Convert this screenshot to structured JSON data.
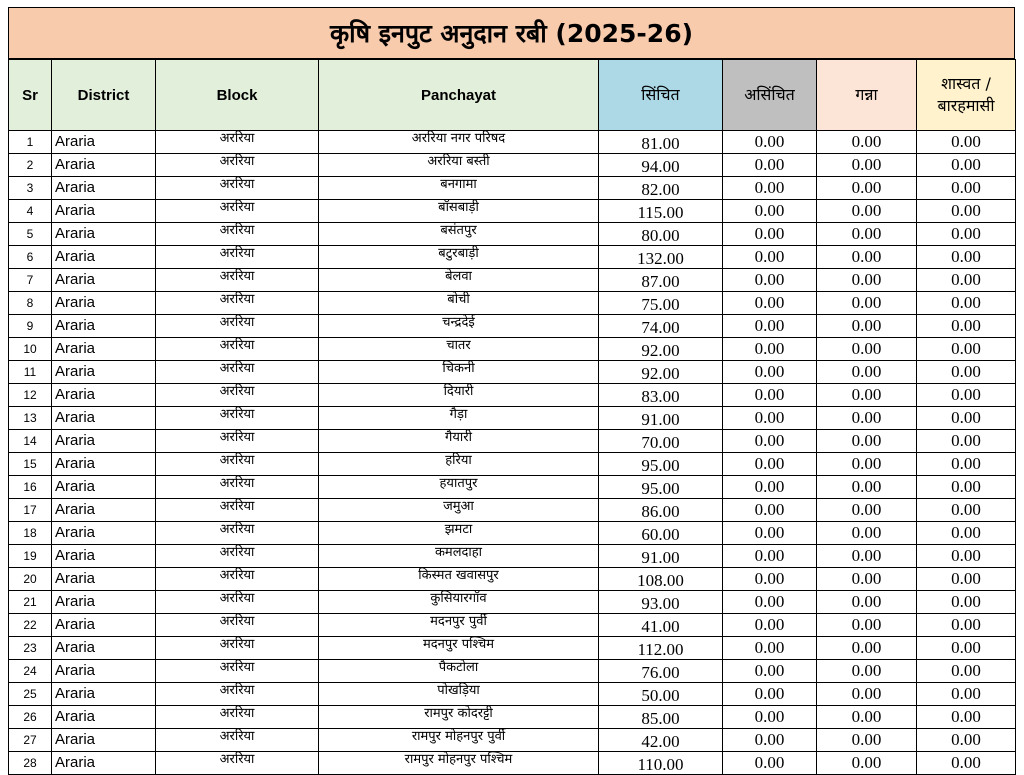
{
  "title": "कृषि इनपुट अनुदान रबी (2025-26)",
  "colors": {
    "title_bg": "#f8cbad",
    "sr_bg": "#e2efda",
    "district_bg": "#e2efda",
    "block_bg": "#e2efda",
    "panchayat_bg": "#e2efda",
    "sinchit_bg": "#add8e6",
    "asinchit_bg": "#bfbfbf",
    "ganna_bg": "#fce4d6",
    "shashwat_bg": "#fff2cc"
  },
  "headers": {
    "sr": "Sr",
    "district": "District",
    "block": "Block",
    "panchayat": "Panchayat",
    "sinchit": "सिंचित",
    "asinchit": "असिंचित",
    "ganna": "गन्ना",
    "shashwat_line1": "शास्वत /",
    "shashwat_line2": "बारहमासी"
  },
  "rows": [
    {
      "sr": "1",
      "district": "Araria",
      "block": "अररिया",
      "panchayat": "अररिया नगर परिषद",
      "sinchit": "81.00",
      "asinchit": "0.00",
      "ganna": "0.00",
      "shashwat": "0.00"
    },
    {
      "sr": "2",
      "district": "Araria",
      "block": "अररिया",
      "panchayat": "अररिया बस्ती",
      "sinchit": "94.00",
      "asinchit": "0.00",
      "ganna": "0.00",
      "shashwat": "0.00"
    },
    {
      "sr": "3",
      "district": "Araria",
      "block": "अररिया",
      "panchayat": "बनगामा",
      "sinchit": "82.00",
      "asinchit": "0.00",
      "ganna": "0.00",
      "shashwat": "0.00"
    },
    {
      "sr": "4",
      "district": "Araria",
      "block": "अररिया",
      "panchayat": "बॉसबाड़ी",
      "sinchit": "115.00",
      "asinchit": "0.00",
      "ganna": "0.00",
      "shashwat": "0.00"
    },
    {
      "sr": "5",
      "district": "Araria",
      "block": "अररिया",
      "panchayat": "बसंतपुर",
      "sinchit": "80.00",
      "asinchit": "0.00",
      "ganna": "0.00",
      "shashwat": "0.00"
    },
    {
      "sr": "6",
      "district": "Araria",
      "block": "अररिया",
      "panchayat": "बटुरबाड़ी",
      "sinchit": "132.00",
      "asinchit": "0.00",
      "ganna": "0.00",
      "shashwat": "0.00"
    },
    {
      "sr": "7",
      "district": "Araria",
      "block": "अररिया",
      "panchayat": "बेलवा",
      "sinchit": "87.00",
      "asinchit": "0.00",
      "ganna": "0.00",
      "shashwat": "0.00"
    },
    {
      "sr": "8",
      "district": "Araria",
      "block": "अररिया",
      "panchayat": "बोची",
      "sinchit": "75.00",
      "asinchit": "0.00",
      "ganna": "0.00",
      "shashwat": "0.00"
    },
    {
      "sr": "9",
      "district": "Araria",
      "block": "अररिया",
      "panchayat": "चन्द्रदेई",
      "sinchit": "74.00",
      "asinchit": "0.00",
      "ganna": "0.00",
      "shashwat": "0.00"
    },
    {
      "sr": "10",
      "district": "Araria",
      "block": "अररिया",
      "panchayat": "चातर",
      "sinchit": "92.00",
      "asinchit": "0.00",
      "ganna": "0.00",
      "shashwat": "0.00"
    },
    {
      "sr": "11",
      "district": "Araria",
      "block": "अररिया",
      "panchayat": "चिकनी",
      "sinchit": "92.00",
      "asinchit": "0.00",
      "ganna": "0.00",
      "shashwat": "0.00"
    },
    {
      "sr": "12",
      "district": "Araria",
      "block": "अररिया",
      "panchayat": "दियारी",
      "sinchit": "83.00",
      "asinchit": "0.00",
      "ganna": "0.00",
      "shashwat": "0.00"
    },
    {
      "sr": "13",
      "district": "Araria",
      "block": "अररिया",
      "panchayat": "गैड़ा",
      "sinchit": "91.00",
      "asinchit": "0.00",
      "ganna": "0.00",
      "shashwat": "0.00"
    },
    {
      "sr": "14",
      "district": "Araria",
      "block": "अररिया",
      "panchayat": "गैयारी",
      "sinchit": "70.00",
      "asinchit": "0.00",
      "ganna": "0.00",
      "shashwat": "0.00"
    },
    {
      "sr": "15",
      "district": "Araria",
      "block": "अररिया",
      "panchayat": "हरिया",
      "sinchit": "95.00",
      "asinchit": "0.00",
      "ganna": "0.00",
      "shashwat": "0.00"
    },
    {
      "sr": "16",
      "district": "Araria",
      "block": "अररिया",
      "panchayat": "हयातपुर",
      "sinchit": "95.00",
      "asinchit": "0.00",
      "ganna": "0.00",
      "shashwat": "0.00"
    },
    {
      "sr": "17",
      "district": "Araria",
      "block": "अररिया",
      "panchayat": "जमुआ",
      "sinchit": "86.00",
      "asinchit": "0.00",
      "ganna": "0.00",
      "shashwat": "0.00"
    },
    {
      "sr": "18",
      "district": "Araria",
      "block": "अररिया",
      "panchayat": "झमटा",
      "sinchit": "60.00",
      "asinchit": "0.00",
      "ganna": "0.00",
      "shashwat": "0.00"
    },
    {
      "sr": "19",
      "district": "Araria",
      "block": "अररिया",
      "panchayat": "कमलदाहा",
      "sinchit": "91.00",
      "asinchit": "0.00",
      "ganna": "0.00",
      "shashwat": "0.00"
    },
    {
      "sr": "20",
      "district": "Araria",
      "block": "अररिया",
      "panchayat": "किस्मत खवासपुर",
      "sinchit": "108.00",
      "asinchit": "0.00",
      "ganna": "0.00",
      "shashwat": "0.00"
    },
    {
      "sr": "21",
      "district": "Araria",
      "block": "अररिया",
      "panchayat": "कुसियारगॉव",
      "sinchit": "93.00",
      "asinchit": "0.00",
      "ganna": "0.00",
      "shashwat": "0.00"
    },
    {
      "sr": "22",
      "district": "Araria",
      "block": "अररिया",
      "panchayat": "मदनपुर पुर्वी",
      "sinchit": "41.00",
      "asinchit": "0.00",
      "ganna": "0.00",
      "shashwat": "0.00"
    },
    {
      "sr": "23",
      "district": "Araria",
      "block": "अररिया",
      "panchayat": "मदनपुर पश्चिम",
      "sinchit": "112.00",
      "asinchit": "0.00",
      "ganna": "0.00",
      "shashwat": "0.00"
    },
    {
      "sr": "24",
      "district": "Araria",
      "block": "अररिया",
      "panchayat": "पैकटोला",
      "sinchit": "76.00",
      "asinchit": "0.00",
      "ganna": "0.00",
      "shashwat": "0.00"
    },
    {
      "sr": "25",
      "district": "Araria",
      "block": "अररिया",
      "panchayat": "पोखड़िया",
      "sinchit": "50.00",
      "asinchit": "0.00",
      "ganna": "0.00",
      "shashwat": "0.00"
    },
    {
      "sr": "26",
      "district": "Araria",
      "block": "अररिया",
      "panchayat": "रामपुर कोदरट्टी",
      "sinchit": "85.00",
      "asinchit": "0.00",
      "ganna": "0.00",
      "shashwat": "0.00"
    },
    {
      "sr": "27",
      "district": "Araria",
      "block": "अररिया",
      "panchayat": "रामपुर मोहनपुर पुर्वी",
      "sinchit": "42.00",
      "asinchit": "0.00",
      "ganna": "0.00",
      "shashwat": "0.00"
    },
    {
      "sr": "28",
      "district": "Araria",
      "block": "अररिया",
      "panchayat": "रामपुर मोहनपुर पश्चिम",
      "sinchit": "110.00",
      "asinchit": "0.00",
      "ganna": "0.00",
      "shashwat": "0.00"
    }
  ]
}
